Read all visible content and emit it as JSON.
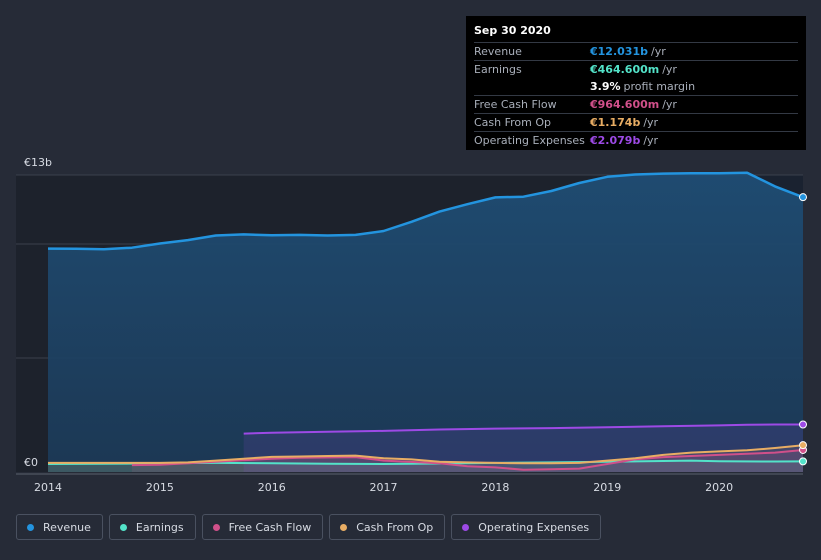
{
  "tooltip": {
    "date": "Sep 30 2020",
    "rows": [
      {
        "label": "Revenue",
        "value": "€12.031b",
        "unit": "/yr",
        "color": "#2394df"
      },
      {
        "label": "Earnings",
        "value": "€464.600m",
        "unit": "/yr",
        "color": "#53e3c9"
      },
      {
        "label": "",
        "value": "3.9%",
        "unit": "profit margin",
        "color": "#ffffff"
      },
      {
        "label": "Free Cash Flow",
        "value": "€964.600m",
        "unit": "/yr",
        "color": "#d0508a"
      },
      {
        "label": "Cash From Op",
        "value": "€1.174b",
        "unit": "/yr",
        "color": "#e8ad64"
      },
      {
        "label": "Operating Expenses",
        "value": "€2.079b",
        "unit": "/yr",
        "color": "#9d4ae6"
      }
    ]
  },
  "legend": [
    {
      "label": "Revenue",
      "color": "#2394df"
    },
    {
      "label": "Earnings",
      "color": "#53e3c9"
    },
    {
      "label": "Free Cash Flow",
      "color": "#d0508a"
    },
    {
      "label": "Cash From Op",
      "color": "#e8ad64"
    },
    {
      "label": "Operating Expenses",
      "color": "#9d4ae6"
    }
  ],
  "chart_data": {
    "type": "area",
    "title": "",
    "ylabel_top": "€13b",
    "ylabel_bottom": "€0",
    "ylim": [
      0,
      13
    ],
    "xlim": [
      2014.0,
      2020.75
    ],
    "x_ticks": [
      "2014",
      "2015",
      "2016",
      "2017",
      "2018",
      "2019",
      "2020"
    ],
    "x_tick_values": [
      2014,
      2015,
      2016,
      2017,
      2018,
      2019,
      2020
    ],
    "series": [
      {
        "name": "Revenue",
        "color": "#2394df",
        "x": [
          2014.0,
          2014.25,
          2014.5,
          2014.75,
          2015.0,
          2015.25,
          2015.5,
          2015.75,
          2016.0,
          2016.25,
          2016.5,
          2016.75,
          2017.0,
          2017.25,
          2017.5,
          2017.75,
          2018.0,
          2018.25,
          2018.5,
          2018.75,
          2019.0,
          2019.25,
          2019.5,
          2019.75,
          2020.0,
          2020.25,
          2020.5,
          2020.75
        ],
        "values": [
          9.78,
          9.77,
          9.75,
          9.82,
          10.0,
          10.15,
          10.35,
          10.4,
          10.36,
          10.38,
          10.35,
          10.38,
          10.55,
          10.95,
          11.4,
          11.72,
          12.02,
          12.05,
          12.3,
          12.65,
          12.92,
          13.02,
          13.06,
          13.08,
          13.08,
          13.1,
          12.5,
          12.03
        ]
      },
      {
        "name": "Earnings",
        "color": "#53e3c9",
        "x": [
          2014.0,
          2014.5,
          2015.0,
          2015.5,
          2016.0,
          2016.5,
          2017.0,
          2017.5,
          2018.0,
          2018.5,
          2019.0,
          2019.5,
          2019.75,
          2020.0,
          2020.5,
          2020.75
        ],
        "values": [
          0.35,
          0.36,
          0.38,
          0.4,
          0.38,
          0.36,
          0.35,
          0.37,
          0.4,
          0.42,
          0.45,
          0.48,
          0.5,
          0.47,
          0.46,
          0.4646
        ]
      },
      {
        "name": "Free Cash Flow",
        "color": "#d0508a",
        "x": [
          2014.75,
          2015.0,
          2015.5,
          2016.0,
          2016.25,
          2016.75,
          2017.0,
          2017.5,
          2017.75,
          2018.0,
          2018.25,
          2018.5,
          2018.75,
          2019.0,
          2019.25,
          2019.5,
          2019.75,
          2020.0,
          2020.25,
          2020.5,
          2020.75
        ],
        "values": [
          0.3,
          0.32,
          0.45,
          0.58,
          0.62,
          0.65,
          0.5,
          0.38,
          0.25,
          0.2,
          0.1,
          0.12,
          0.15,
          0.35,
          0.55,
          0.65,
          0.7,
          0.75,
          0.8,
          0.85,
          0.9646
        ]
      },
      {
        "name": "Cash From Op",
        "color": "#e8ad64",
        "x": [
          2014.0,
          2014.5,
          2015.0,
          2015.25,
          2015.5,
          2015.75,
          2016.0,
          2016.25,
          2016.5,
          2016.75,
          2017.0,
          2017.25,
          2017.5,
          2017.75,
          2018.0,
          2018.25,
          2018.5,
          2018.75,
          2019.0,
          2019.25,
          2019.5,
          2019.75,
          2020.0,
          2020.25,
          2020.5,
          2020.75
        ],
        "values": [
          0.4,
          0.4,
          0.4,
          0.42,
          0.5,
          0.58,
          0.66,
          0.68,
          0.7,
          0.72,
          0.6,
          0.55,
          0.45,
          0.42,
          0.4,
          0.38,
          0.38,
          0.4,
          0.5,
          0.6,
          0.75,
          0.85,
          0.9,
          0.95,
          1.05,
          1.174
        ]
      },
      {
        "name": "Operating Expenses",
        "color": "#9d4ae6",
        "x": [
          2015.75,
          2016.0,
          2016.5,
          2017.0,
          2017.5,
          2018.0,
          2018.5,
          2019.0,
          2019.5,
          2020.0,
          2020.25,
          2020.5,
          2020.75
        ],
        "values": [
          1.68,
          1.72,
          1.76,
          1.8,
          1.86,
          1.9,
          1.92,
          1.96,
          2.0,
          2.04,
          2.07,
          2.08,
          2.079
        ]
      }
    ]
  }
}
